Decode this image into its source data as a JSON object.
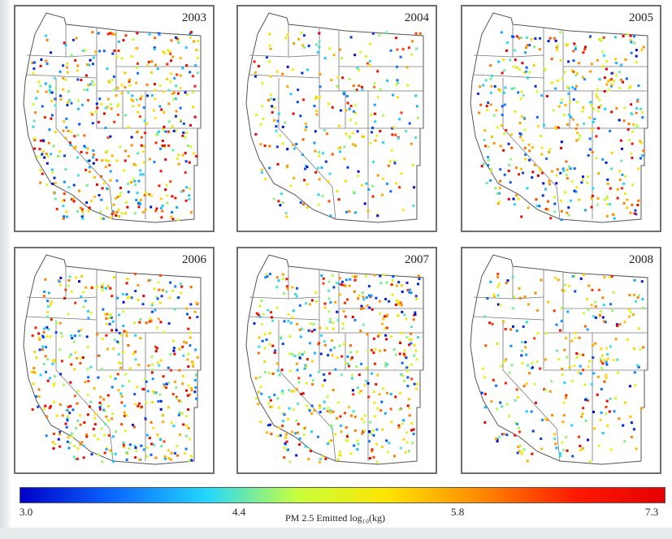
{
  "panels": [
    {
      "year": "2003",
      "seed": 11,
      "density": 1.0,
      "bias": 0.62
    },
    {
      "year": "2004",
      "seed": 23,
      "density": 0.55,
      "bias": 0.3
    },
    {
      "year": "2005",
      "seed": 37,
      "density": 0.85,
      "bias": 0.4
    },
    {
      "year": "2006",
      "seed": 51,
      "density": 1.0,
      "bias": 0.55
    },
    {
      "year": "2007",
      "seed": 67,
      "density": 1.0,
      "bias": 0.58
    },
    {
      "year": "2008",
      "seed": 83,
      "density": 0.6,
      "bias": 0.45
    }
  ],
  "colorbar": {
    "min": "3.0",
    "t1": "4.4",
    "t2": "5.8",
    "max": "7.3",
    "label": "PM 2.5 Emitted log₁₀(kg)",
    "colors": [
      "#0000c8",
      "#0a64ff",
      "#22d8ff",
      "#c8ff3c",
      "#ffe400",
      "#ff8c00",
      "#ff1a00",
      "#e60000"
    ]
  }
}
